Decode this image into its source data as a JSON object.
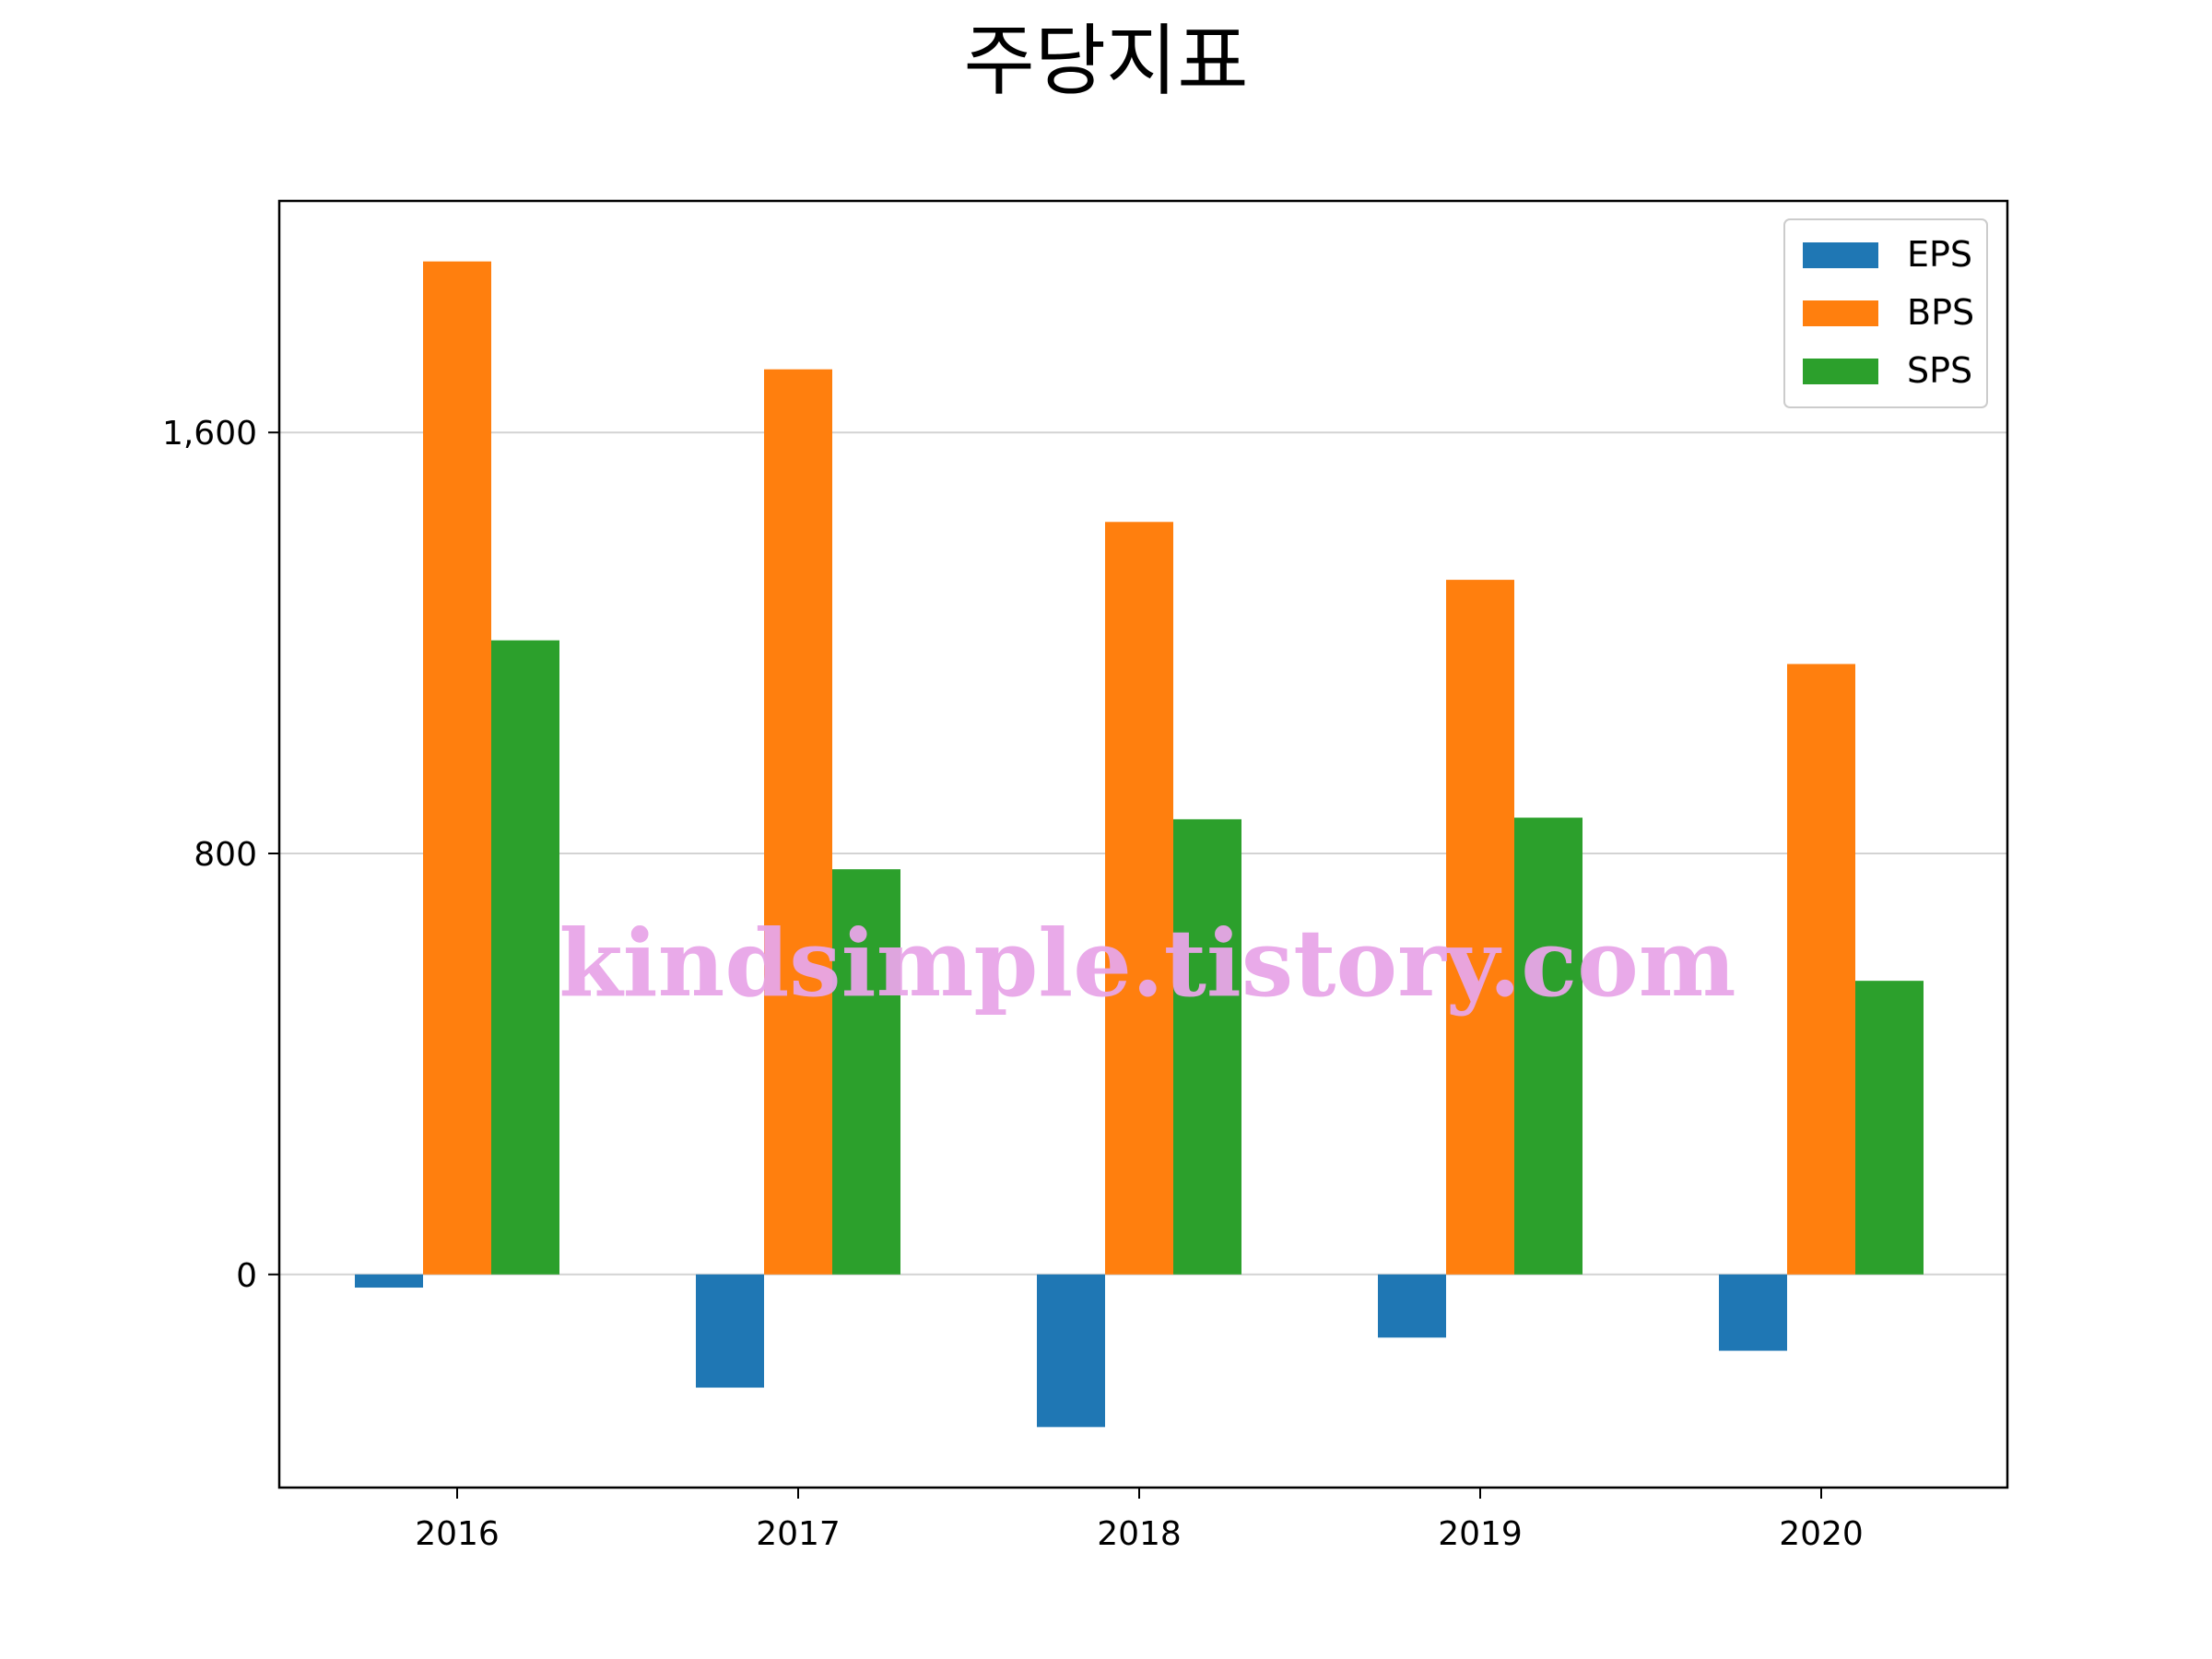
{
  "chart_data": {
    "type": "bar",
    "title": "주당지표",
    "categories": [
      "2016",
      "2017",
      "2018",
      "2019",
      "2020"
    ],
    "series": [
      {
        "name": "EPS",
        "color": "#1f77b4",
        "values": [
          -25,
          -215,
          -290,
          -120,
          -145
        ]
      },
      {
        "name": "BPS",
        "color": "#ff7f0e",
        "values": [
          1925,
          1720,
          1430,
          1320,
          1160
        ]
      },
      {
        "name": "SPS",
        "color": "#2ca02c",
        "values": [
          1205,
          770,
          865,
          868,
          558
        ]
      }
    ],
    "yticks": [
      0,
      800,
      1600
    ],
    "ytick_labels": [
      "0",
      "800",
      "1,600"
    ],
    "ylim": [
      -405,
      2040
    ],
    "grid": "y",
    "legend_position": "upper right"
  },
  "watermark": {
    "text": "kindsimple.tistory.com",
    "color": "#e8a6e8"
  }
}
